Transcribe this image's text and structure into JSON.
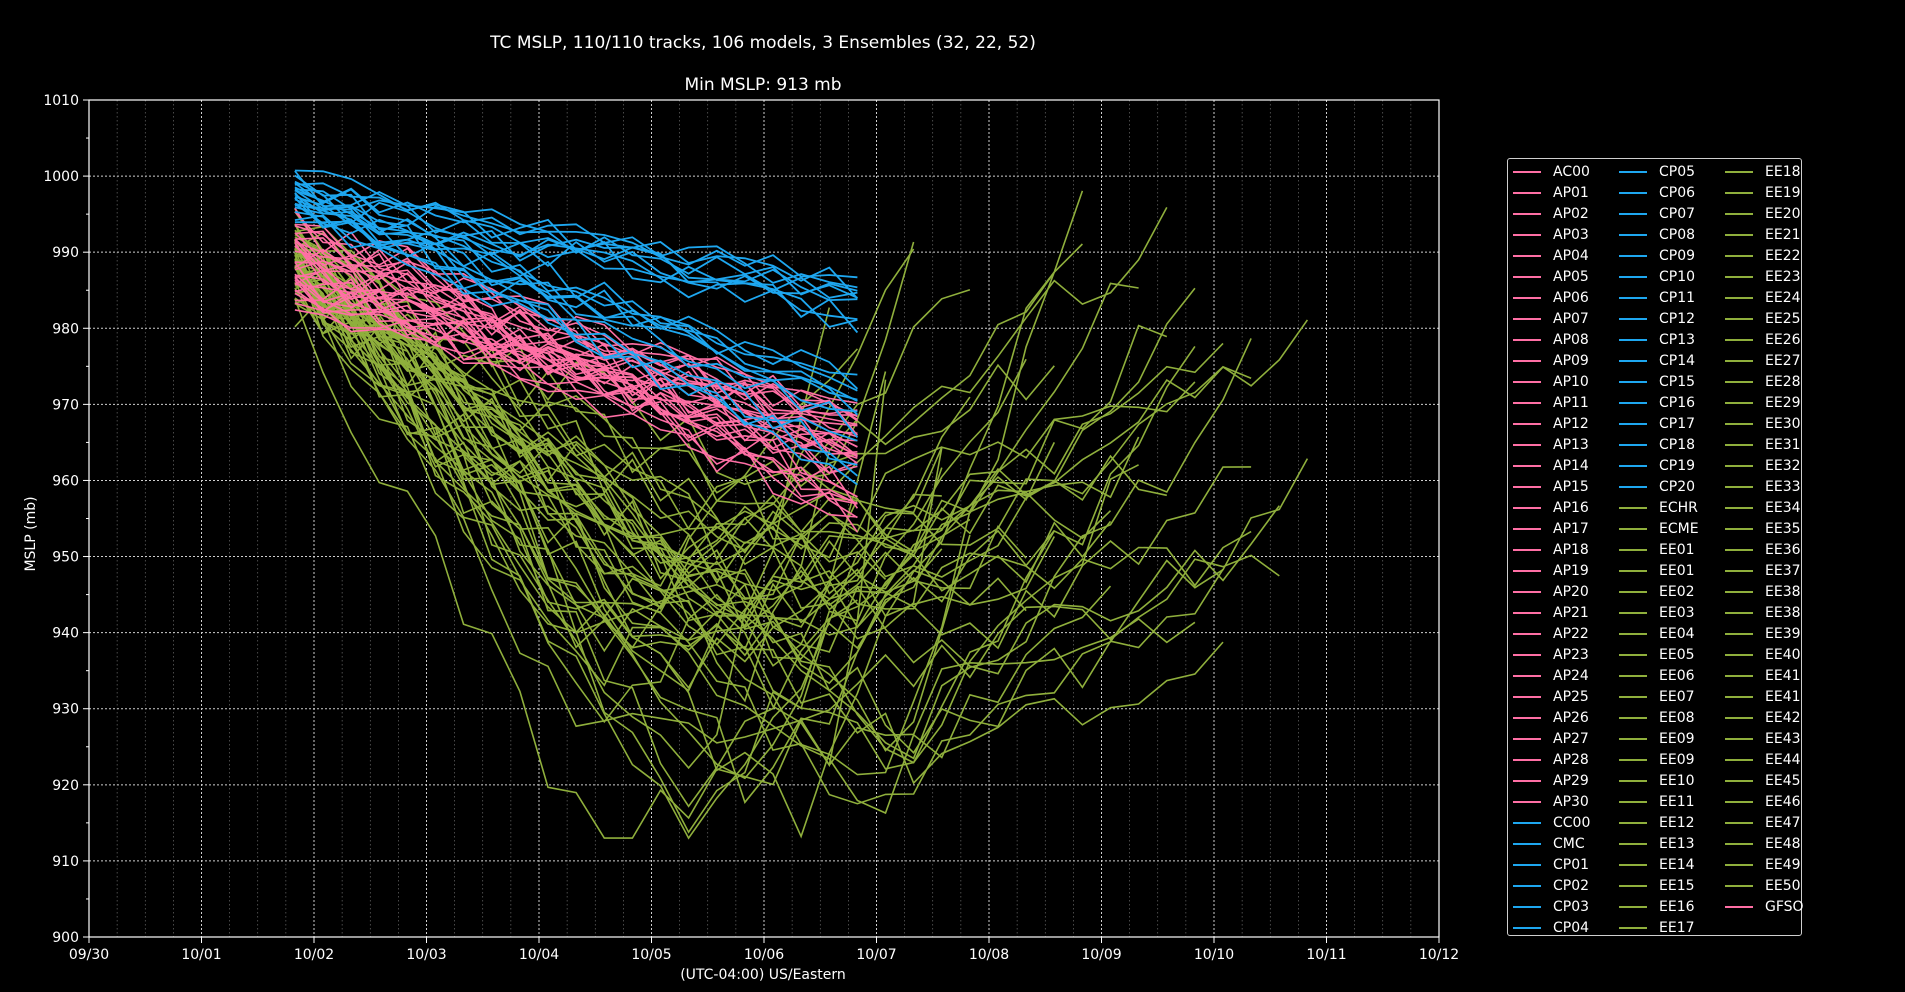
{
  "chart_data": {
    "type": "line",
    "title": "TC MSLP, 110/110 tracks, 106 models, 3 Ensembles (32, 22, 52)",
    "subtitle": "Min MSLP: 913 mb",
    "xlabel": "(UTC-04:00) US/Eastern",
    "ylabel": "MSLP (mb)",
    "xlim": [
      "09/30",
      "10/12"
    ],
    "ylim": [
      900,
      1010
    ],
    "x_ticks": [
      "09/30",
      "10/01",
      "10/02",
      "10/03",
      "10/04",
      "10/05",
      "10/06",
      "10/07",
      "10/08",
      "10/09",
      "10/10",
      "10/11",
      "10/12"
    ],
    "y_ticks": [
      900,
      910,
      920,
      930,
      940,
      950,
      960,
      970,
      980,
      990,
      1000,
      1010
    ],
    "grid": true,
    "legend_placement": "right",
    "colors": {
      "AP": "#ff6fa5",
      "CP": "#1ea7f0",
      "EE": "#8faf3c",
      "background": "#000000",
      "axes": "#ffffff"
    },
    "groups": [
      {
        "prefix": "AP",
        "color": "#ff6fa5",
        "start_day": 1.83,
        "end_day": 6.83,
        "start_range": [
          984,
          995
        ],
        "end_range": [
          955,
          968
        ],
        "count": 32
      },
      {
        "prefix": "CP",
        "color": "#1ea7f0",
        "start_day": 1.83,
        "end_day": 6.83,
        "start_range": [
          994,
          1000
        ],
        "end_range": [
          960,
          987
        ],
        "count": 22
      },
      {
        "prefix": "EE",
        "color": "#8faf3c",
        "start_day": 1.83,
        "min_range": [
          913,
          955
        ],
        "min_day_range": [
          4.2,
          7.8
        ],
        "end_day_range": [
          6.8,
          10.9
        ],
        "end_range": [
          935,
          999
        ],
        "count": 52
      }
    ],
    "min_mslp": 913,
    "legend": [
      {
        "name": "AC00",
        "color": "#ff6fa5"
      },
      {
        "name": "AP01",
        "color": "#ff6fa5"
      },
      {
        "name": "AP02",
        "color": "#ff6fa5"
      },
      {
        "name": "AP03",
        "color": "#ff6fa5"
      },
      {
        "name": "AP04",
        "color": "#ff6fa5"
      },
      {
        "name": "AP05",
        "color": "#ff6fa5"
      },
      {
        "name": "AP06",
        "color": "#ff6fa5"
      },
      {
        "name": "AP07",
        "color": "#ff6fa5"
      },
      {
        "name": "AP08",
        "color": "#ff6fa5"
      },
      {
        "name": "AP09",
        "color": "#ff6fa5"
      },
      {
        "name": "AP10",
        "color": "#ff6fa5"
      },
      {
        "name": "AP11",
        "color": "#ff6fa5"
      },
      {
        "name": "AP12",
        "color": "#ff6fa5"
      },
      {
        "name": "AP13",
        "color": "#ff6fa5"
      },
      {
        "name": "AP14",
        "color": "#ff6fa5"
      },
      {
        "name": "AP15",
        "color": "#ff6fa5"
      },
      {
        "name": "AP16",
        "color": "#ff6fa5"
      },
      {
        "name": "AP17",
        "color": "#ff6fa5"
      },
      {
        "name": "AP18",
        "color": "#ff6fa5"
      },
      {
        "name": "AP19",
        "color": "#ff6fa5"
      },
      {
        "name": "AP20",
        "color": "#ff6fa5"
      },
      {
        "name": "AP21",
        "color": "#ff6fa5"
      },
      {
        "name": "AP22",
        "color": "#ff6fa5"
      },
      {
        "name": "AP23",
        "color": "#ff6fa5"
      },
      {
        "name": "AP24",
        "color": "#ff6fa5"
      },
      {
        "name": "AP25",
        "color": "#ff6fa5"
      },
      {
        "name": "AP26",
        "color": "#ff6fa5"
      },
      {
        "name": "AP27",
        "color": "#ff6fa5"
      },
      {
        "name": "AP28",
        "color": "#ff6fa5"
      },
      {
        "name": "AP29",
        "color": "#ff6fa5"
      },
      {
        "name": "AP30",
        "color": "#ff6fa5"
      },
      {
        "name": "CC00",
        "color": "#1ea7f0"
      },
      {
        "name": "CMC",
        "color": "#1ea7f0"
      },
      {
        "name": "CP01",
        "color": "#1ea7f0"
      },
      {
        "name": "CP02",
        "color": "#1ea7f0"
      },
      {
        "name": "CP03",
        "color": "#1ea7f0"
      },
      {
        "name": "CP04",
        "color": "#1ea7f0"
      },
      {
        "name": "CP05",
        "color": "#1ea7f0"
      },
      {
        "name": "CP06",
        "color": "#1ea7f0"
      },
      {
        "name": "CP07",
        "color": "#1ea7f0"
      },
      {
        "name": "CP08",
        "color": "#1ea7f0"
      },
      {
        "name": "CP09",
        "color": "#1ea7f0"
      },
      {
        "name": "CP10",
        "color": "#1ea7f0"
      },
      {
        "name": "CP11",
        "color": "#1ea7f0"
      },
      {
        "name": "CP12",
        "color": "#1ea7f0"
      },
      {
        "name": "CP13",
        "color": "#1ea7f0"
      },
      {
        "name": "CP14",
        "color": "#1ea7f0"
      },
      {
        "name": "CP15",
        "color": "#1ea7f0"
      },
      {
        "name": "CP16",
        "color": "#1ea7f0"
      },
      {
        "name": "CP17",
        "color": "#1ea7f0"
      },
      {
        "name": "CP18",
        "color": "#1ea7f0"
      },
      {
        "name": "CP19",
        "color": "#1ea7f0"
      },
      {
        "name": "CP20",
        "color": "#1ea7f0"
      },
      {
        "name": "ECHR",
        "color": "#8faf3c"
      },
      {
        "name": "ECME",
        "color": "#8faf3c"
      },
      {
        "name": "EE01",
        "color": "#8faf3c"
      },
      {
        "name": "EE01",
        "color": "#8faf3c"
      },
      {
        "name": "EE02",
        "color": "#8faf3c"
      },
      {
        "name": "EE03",
        "color": "#8faf3c"
      },
      {
        "name": "EE04",
        "color": "#8faf3c"
      },
      {
        "name": "EE05",
        "color": "#8faf3c"
      },
      {
        "name": "EE06",
        "color": "#8faf3c"
      },
      {
        "name": "EE07",
        "color": "#8faf3c"
      },
      {
        "name": "EE08",
        "color": "#8faf3c"
      },
      {
        "name": "EE09",
        "color": "#8faf3c"
      },
      {
        "name": "EE09",
        "color": "#8faf3c"
      },
      {
        "name": "EE10",
        "color": "#8faf3c"
      },
      {
        "name": "EE11",
        "color": "#8faf3c"
      },
      {
        "name": "EE12",
        "color": "#8faf3c"
      },
      {
        "name": "EE13",
        "color": "#8faf3c"
      },
      {
        "name": "EE14",
        "color": "#8faf3c"
      },
      {
        "name": "EE15",
        "color": "#8faf3c"
      },
      {
        "name": "EE16",
        "color": "#8faf3c"
      },
      {
        "name": "EE17",
        "color": "#8faf3c"
      },
      {
        "name": "EE18",
        "color": "#8faf3c"
      },
      {
        "name": "EE19",
        "color": "#8faf3c"
      },
      {
        "name": "EE20",
        "color": "#8faf3c"
      },
      {
        "name": "EE21",
        "color": "#8faf3c"
      },
      {
        "name": "EE22",
        "color": "#8faf3c"
      },
      {
        "name": "EE23",
        "color": "#8faf3c"
      },
      {
        "name": "EE24",
        "color": "#8faf3c"
      },
      {
        "name": "EE25",
        "color": "#8faf3c"
      },
      {
        "name": "EE26",
        "color": "#8faf3c"
      },
      {
        "name": "EE27",
        "color": "#8faf3c"
      },
      {
        "name": "EE28",
        "color": "#8faf3c"
      },
      {
        "name": "EE29",
        "color": "#8faf3c"
      },
      {
        "name": "EE30",
        "color": "#8faf3c"
      },
      {
        "name": "EE31",
        "color": "#8faf3c"
      },
      {
        "name": "EE32",
        "color": "#8faf3c"
      },
      {
        "name": "EE33",
        "color": "#8faf3c"
      },
      {
        "name": "EE34",
        "color": "#8faf3c"
      },
      {
        "name": "EE35",
        "color": "#8faf3c"
      },
      {
        "name": "EE36",
        "color": "#8faf3c"
      },
      {
        "name": "EE37",
        "color": "#8faf3c"
      },
      {
        "name": "EE38",
        "color": "#8faf3c"
      },
      {
        "name": "EE38",
        "color": "#8faf3c"
      },
      {
        "name": "EE39",
        "color": "#8faf3c"
      },
      {
        "name": "EE40",
        "color": "#8faf3c"
      },
      {
        "name": "EE41",
        "color": "#8faf3c"
      },
      {
        "name": "EE41",
        "color": "#8faf3c"
      },
      {
        "name": "EE42",
        "color": "#8faf3c"
      },
      {
        "name": "EE43",
        "color": "#8faf3c"
      },
      {
        "name": "EE44",
        "color": "#8faf3c"
      },
      {
        "name": "EE45",
        "color": "#8faf3c"
      },
      {
        "name": "EE46",
        "color": "#8faf3c"
      },
      {
        "name": "EE47",
        "color": "#8faf3c"
      },
      {
        "name": "EE48",
        "color": "#8faf3c"
      },
      {
        "name": "EE49",
        "color": "#8faf3c"
      },
      {
        "name": "EE50",
        "color": "#8faf3c"
      },
      {
        "name": "GFSO",
        "color": "#ff6fa5"
      }
    ]
  }
}
